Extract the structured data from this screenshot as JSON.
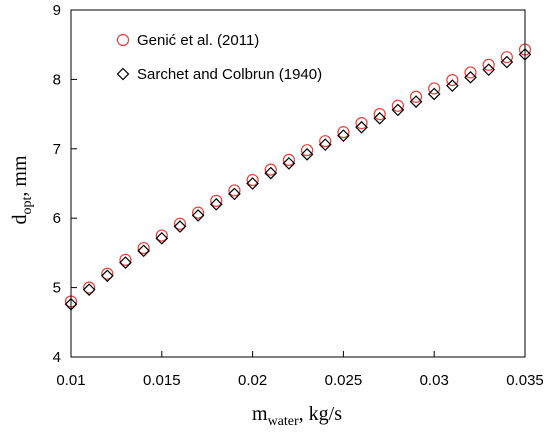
{
  "chart_data": {
    "type": "scatter",
    "x_axis": {
      "label_main": "m",
      "label_sub": "water",
      "label_rest": ", kg/s",
      "range": [
        0.01,
        0.035
      ],
      "ticks": [
        "0.01",
        "0.015",
        "0.02",
        "0.025",
        "0.03",
        "0.035"
      ],
      "tick_values": [
        0.01,
        0.015,
        0.02,
        0.025,
        0.03,
        0.035
      ]
    },
    "y_axis": {
      "label_main": "d",
      "label_sub": "opt",
      "label_rest": ", mm",
      "range": [
        4,
        9
      ],
      "ticks": [
        "4",
        "5",
        "6",
        "7",
        "8",
        "9"
      ],
      "tick_values": [
        4,
        5,
        6,
        7,
        8,
        9
      ]
    },
    "grid": false,
    "legend_position": "top-left",
    "x": [
      0.01,
      0.011,
      0.012,
      0.013,
      0.014,
      0.015,
      0.016,
      0.017,
      0.018,
      0.019,
      0.02,
      0.021,
      0.022,
      0.023,
      0.024,
      0.025,
      0.026,
      0.027,
      0.028,
      0.029,
      0.03,
      0.031,
      0.032,
      0.033,
      0.034,
      0.035
    ],
    "series": [
      {
        "name": "Genić et al. (2011)",
        "marker": "circle",
        "color": "#e8403a",
        "values": [
          4.8,
          5.0,
          5.2,
          5.4,
          5.57,
          5.75,
          5.92,
          6.08,
          6.25,
          6.4,
          6.55,
          6.7,
          6.84,
          6.98,
          7.11,
          7.24,
          7.37,
          7.5,
          7.62,
          7.75,
          7.87,
          7.99,
          8.1,
          8.21,
          8.32,
          8.43
        ]
      },
      {
        "name": "Sarchet and Colbrun (1940)",
        "marker": "diamond",
        "color": "#000000",
        "values": [
          4.76,
          4.97,
          5.17,
          5.36,
          5.53,
          5.71,
          5.88,
          6.04,
          6.2,
          6.35,
          6.5,
          6.65,
          6.79,
          6.92,
          7.06,
          7.19,
          7.31,
          7.44,
          7.56,
          7.68,
          7.79,
          7.91,
          8.03,
          8.14,
          8.25,
          8.36
        ]
      }
    ]
  }
}
